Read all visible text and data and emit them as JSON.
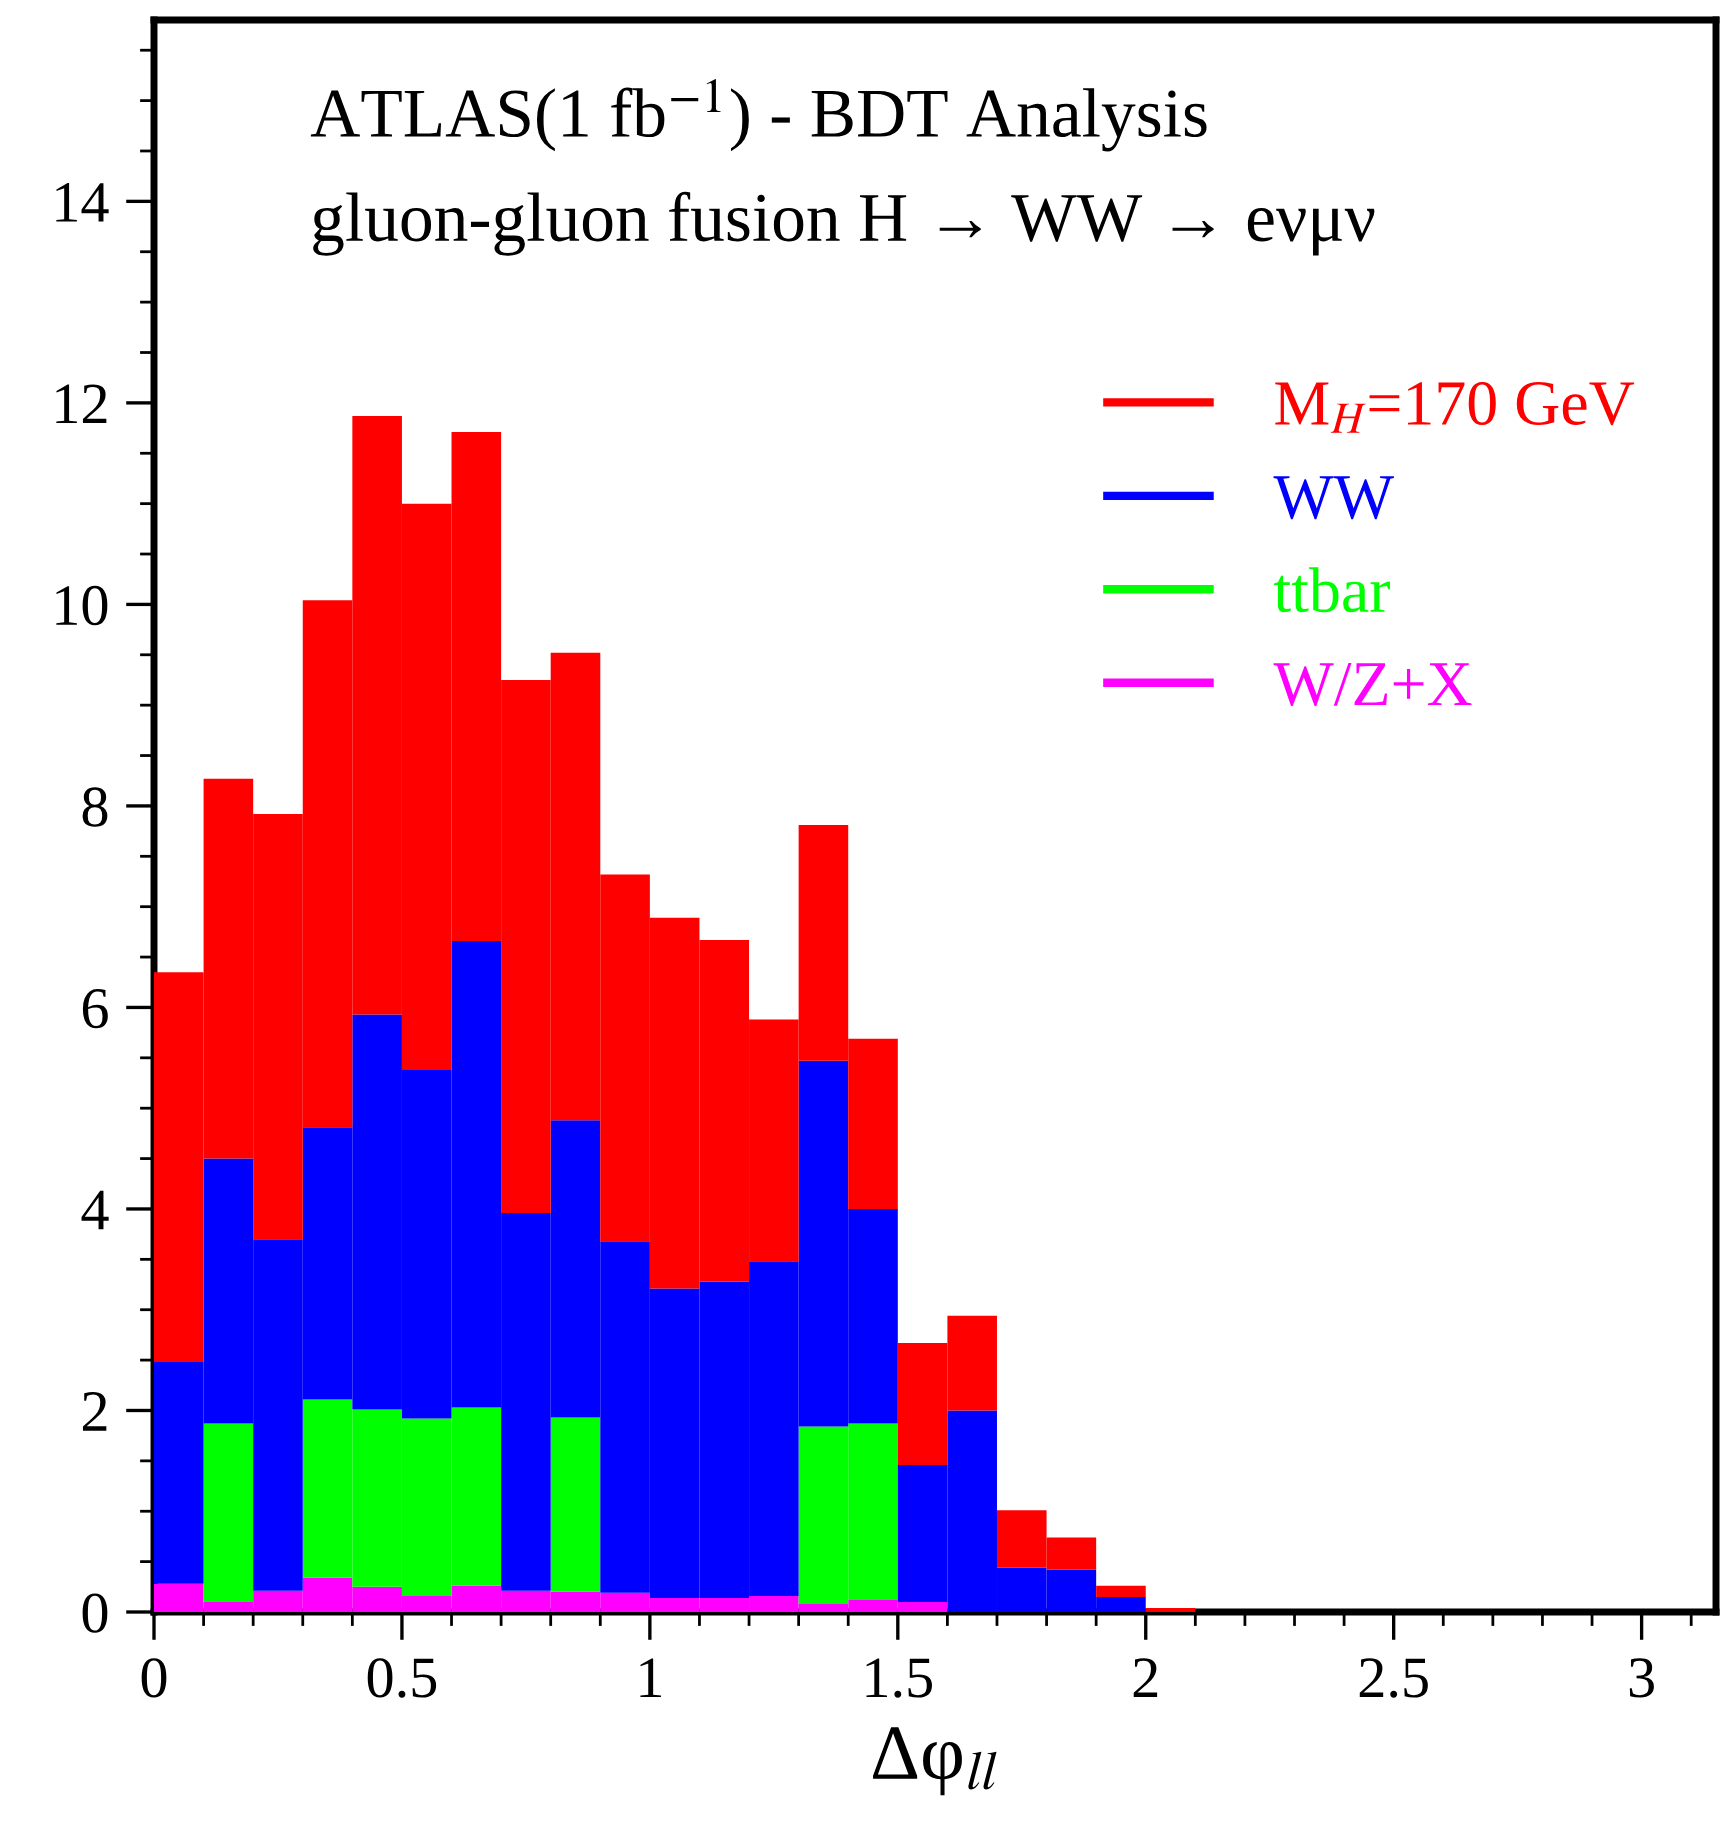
{
  "chart_data": {
    "type": "bar",
    "title": "ATLAS(1 fb$^{−1}$) - BDT Analysis",
    "subtitle": "gluon-gluon fusion H → WW → eνμν",
    "xlabel": "Δφ$_{ll}$",
    "x": [
      0.05,
      0.15,
      0.25,
      0.35,
      0.45,
      0.55,
      0.65,
      0.75,
      0.85,
      0.95,
      1.05,
      1.15,
      1.25,
      1.35,
      1.45,
      1.55,
      1.65,
      1.75,
      1.85,
      1.95,
      2.05
    ],
    "stacked": true,
    "series": [
      {
        "name": "W/Z+X",
        "color": "#ff00ff",
        "values": [
          0.28,
          0.1,
          0.21,
          0.34,
          0.25,
          0.16,
          0.26,
          0.21,
          0.2,
          0.19,
          0.14,
          0.14,
          0.16,
          0.08,
          0.12,
          0.1,
          null,
          null,
          null,
          0,
          0
        ]
      },
      {
        "name": "ttbar",
        "color": "#00ff00",
        "values": [
          0,
          1.77,
          0,
          1.77,
          1.76,
          1.76,
          1.77,
          0,
          1.73,
          0,
          0,
          0,
          0,
          1.76,
          1.75,
          0,
          0,
          0,
          0,
          0,
          0
        ]
      },
      {
        "name": "WW",
        "color": "#0000ff",
        "values": [
          2.2,
          2.63,
          3.49,
          2.7,
          3.92,
          3.46,
          4.63,
          3.75,
          2.95,
          3.49,
          3.07,
          3.14,
          3.32,
          3.63,
          2.13,
          1.36,
          2.0,
          0.44,
          0.42,
          0.15,
          0
        ]
      },
      {
        "name": "M$_{H}$=170 GeV",
        "color": "#ff0000",
        "values": [
          3.87,
          3.77,
          4.22,
          5.23,
          5.94,
          5.62,
          5.05,
          5.29,
          4.64,
          3.64,
          3.68,
          3.39,
          2.4,
          2.34,
          1.69,
          1.21,
          0.94,
          0.57,
          0.32,
          0.11,
          0.04
        ]
      }
    ],
    "xlim": [
      0,
      3.15
    ],
    "xticks": [
      0,
      0.5,
      1,
      1.5,
      2,
      2.5,
      3
    ],
    "ylim": [
      0,
      15.8
    ],
    "yticks": [
      0,
      2,
      4,
      6,
      8,
      10,
      12,
      14
    ],
    "legend": "top right"
  }
}
